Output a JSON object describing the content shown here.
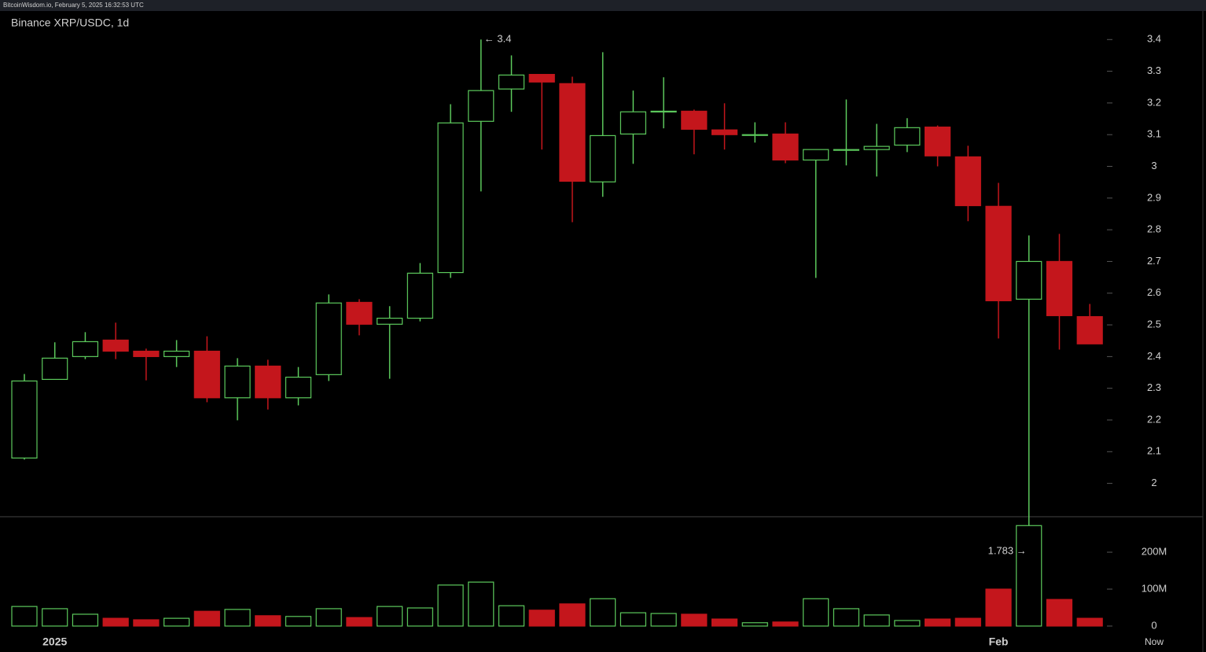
{
  "header": "BitcoinWisdom.io, February 5, 2025 16:32:53 UTC",
  "chart_data": {
    "type": "candlestick",
    "title": "Binance XRP/USDC, 1d",
    "categories": [
      null,
      "2025",
      null,
      null,
      null,
      null,
      null,
      null,
      null,
      null,
      null,
      null,
      null,
      null,
      null,
      null,
      null,
      null,
      null,
      null,
      null,
      null,
      null,
      null,
      null,
      null,
      null,
      null,
      null,
      null,
      null,
      null,
      "Feb",
      null,
      null,
      null
    ],
    "now_label": "Now",
    "open": [
      2.08,
      2.328,
      2.4,
      2.452,
      2.417,
      2.4,
      2.417,
      2.27,
      2.37,
      2.27,
      2.343,
      2.571,
      2.502,
      2.521,
      2.665,
      3.142,
      3.244,
      3.29,
      3.261,
      2.951,
      3.102,
      3.172,
      3.174,
      3.115,
      3.098,
      3.102,
      3.02,
      3.052,
      3.053,
      3.067,
      3.124,
      3.03,
      2.874,
      2.581,
      2.7,
      2.526
    ],
    "high": [
      2.345,
      2.445,
      2.477,
      2.507,
      2.425,
      2.452,
      2.464,
      2.395,
      2.39,
      2.367,
      2.596,
      2.581,
      2.559,
      2.695,
      3.196,
      3.4,
      3.35,
      3.29,
      3.283,
      3.36,
      3.239,
      3.281,
      3.179,
      3.199,
      3.139,
      3.139,
      3.053,
      3.211,
      3.134,
      3.152,
      3.129,
      3.065,
      2.948,
      2.782,
      2.787,
      2.566
    ],
    "low": [
      2.075,
      2.328,
      2.392,
      2.392,
      2.325,
      2.367,
      2.256,
      2.199,
      2.233,
      2.246,
      2.323,
      2.467,
      2.33,
      2.511,
      2.648,
      2.921,
      3.172,
      3.053,
      2.824,
      2.904,
      3.008,
      3.12,
      3.038,
      3.053,
      3.075,
      3.01,
      2.648,
      3.003,
      2.968,
      3.045,
      3.0,
      2.827,
      2.457,
      1.783,
      2.422,
      2.44
    ],
    "close": [
      2.323,
      2.395,
      2.447,
      2.417,
      2.4,
      2.417,
      2.27,
      2.37,
      2.27,
      2.335,
      2.569,
      2.502,
      2.521,
      2.663,
      3.137,
      3.239,
      3.288,
      3.266,
      2.953,
      3.097,
      3.172,
      3.174,
      3.117,
      3.1,
      3.1,
      3.02,
      3.053,
      3.053,
      3.063,
      3.122,
      3.033,
      2.876,
      2.576,
      2.7,
      2.529,
      2.44
    ],
    "volume": [
      53,
      47,
      32,
      21,
      17,
      21,
      40,
      45,
      28,
      26,
      47,
      23,
      53,
      49,
      111,
      119,
      55,
      43,
      60,
      74,
      36,
      34,
      32,
      19,
      9,
      11,
      74,
      47,
      30,
      15,
      19,
      21,
      100,
      272,
      72,
      21
    ],
    "up_color": "#5cc95c",
    "down_color": "#c4161c",
    "ylim": [
      1.55,
      3.49
    ],
    "yticks": [
      2,
      2.1,
      2.2,
      2.3,
      2.4,
      2.5,
      2.6,
      2.7,
      2.8,
      2.9,
      3,
      3.1,
      3.2,
      3.3,
      3.4
    ],
    "volume_ylim": [
      0,
      296
    ],
    "volume_yticks": [
      0,
      {
        "value": 100,
        "label": "100M"
      },
      {
        "value": 200,
        "label": "200M"
      }
    ],
    "high_label": "← 3.4",
    "low_label": "1.783 →"
  }
}
